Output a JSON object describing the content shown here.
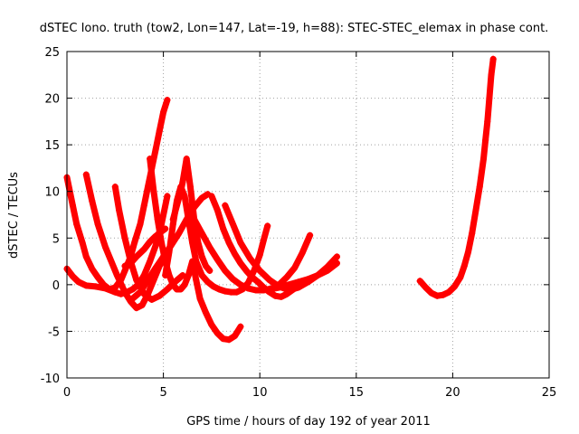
{
  "chart_data": {
    "type": "scatter",
    "title": "dSTEC Iono. truth (tow2, Lon=147, Lat=-19, h=88): STEC-STEC_elemax in phase cont.",
    "xlabel": "GPS time / hours of day 192 of year 2011",
    "ylabel": "dSTEC  / TECUs",
    "xlim": [
      0,
      25
    ],
    "ylim": [
      -10,
      25
    ],
    "xticks": [
      0,
      5,
      10,
      15,
      20,
      25
    ],
    "yticks": [
      -10,
      -5,
      0,
      5,
      10,
      15,
      20,
      25
    ],
    "grid": true,
    "marker": "+",
    "color": "#ff0000",
    "series": [
      {
        "x": [
          0.0,
          0.3,
          0.6,
          1.0,
          1.5,
          2.0,
          2.5
        ],
        "y": [
          1.7,
          0.9,
          0.3,
          -0.1,
          -0.2,
          -0.4,
          -0.8
        ]
      },
      {
        "x": [
          0.0,
          0.3,
          0.5,
          0.8,
          1.0,
          1.3,
          1.6,
          1.9,
          2.2,
          2.5,
          2.8,
          3.1,
          3.4,
          3.7,
          4.0,
          4.3,
          4.6,
          4.9,
          5.2
        ],
        "y": [
          11.5,
          8.5,
          6.5,
          4.5,
          3.0,
          1.7,
          0.8,
          0.0,
          -0.5,
          -0.8,
          -1.0,
          -0.8,
          -0.5,
          0.0,
          1.0,
          2.5,
          4.2,
          6.5,
          9.5
        ]
      },
      {
        "x": [
          1.0,
          1.3,
          1.6,
          2.0,
          2.3,
          2.6,
          3.0,
          3.3,
          3.6,
          3.9,
          4.2,
          4.5,
          4.8,
          5.0
        ],
        "y": [
          11.8,
          9.0,
          6.5,
          4.0,
          2.5,
          1.0,
          -0.8,
          -1.8,
          -2.5,
          -2.2,
          -1.0,
          0.5,
          2.0,
          3.0
        ]
      },
      {
        "x": [
          1.8,
          2.2,
          2.5,
          2.8,
          3.0,
          3.3,
          3.5,
          3.8,
          4.0,
          4.2,
          4.4,
          4.6,
          4.8,
          5.0,
          5.2
        ],
        "y": [
          -0.2,
          -0.5,
          -0.3,
          0.5,
          1.5,
          3.0,
          4.5,
          6.5,
          8.5,
          10.5,
          12.5,
          14.5,
          16.5,
          18.5,
          19.8
        ]
      },
      {
        "x": [
          2.5,
          2.7,
          3.0,
          3.3,
          3.6,
          4.0,
          4.4,
          4.8,
          5.2,
          5.6,
          6.0
        ],
        "y": [
          10.5,
          8.0,
          5.0,
          2.5,
          0.5,
          -1.0,
          -1.6,
          -1.2,
          -0.5,
          0.3,
          1.0
        ]
      },
      {
        "x": [
          3.0,
          3.3,
          3.6,
          4.0,
          4.3,
          4.6,
          4.9,
          5.1
        ],
        "y": [
          2.0,
          2.3,
          3.0,
          3.8,
          4.6,
          5.2,
          5.7,
          6.0
        ]
      },
      {
        "x": [
          3.4,
          3.8,
          4.2,
          4.6,
          5.0,
          5.4,
          5.8,
          6.2,
          6.6,
          7.0,
          7.3
        ],
        "y": [
          -1.5,
          -0.8,
          0.5,
          1.8,
          3.0,
          4.2,
          5.5,
          7.0,
          8.3,
          9.3,
          9.7
        ]
      },
      {
        "x": [
          4.3,
          4.5,
          4.7,
          4.9,
          5.1,
          5.3,
          5.5,
          5.7,
          5.9,
          6.1,
          6.3,
          6.5,
          6.7,
          6.9,
          7.2,
          7.5,
          7.8,
          8.1,
          8.4,
          8.7,
          9.0
        ],
        "y": [
          13.5,
          10.0,
          7.0,
          4.5,
          2.5,
          1.0,
          0.0,
          -0.5,
          -0.5,
          0.0,
          1.0,
          2.5,
          0.5,
          -1.5,
          -3.0,
          -4.3,
          -5.2,
          -5.8,
          -5.9,
          -5.5,
          -4.5
        ]
      },
      {
        "x": [
          5.1,
          5.3,
          5.5,
          5.7,
          5.9,
          6.1,
          6.3,
          6.5,
          6.7,
          7.0,
          7.3,
          7.6,
          7.9,
          8.2,
          8.5,
          8.8,
          9.1,
          9.4,
          9.7,
          10.0,
          10.2,
          10.4
        ],
        "y": [
          1.0,
          3.5,
          6.5,
          9.0,
          10.5,
          9.5,
          7.0,
          4.5,
          2.5,
          1.0,
          0.3,
          -0.2,
          -0.5,
          -0.7,
          -0.8,
          -0.8,
          -0.5,
          0.2,
          1.5,
          3.2,
          4.8,
          6.3
        ]
      },
      {
        "x": [
          5.5,
          5.7,
          5.9,
          6.0,
          6.2,
          6.4,
          6.6,
          6.8,
          7.0,
          7.2,
          7.4
        ],
        "y": [
          7.0,
          8.5,
          10.0,
          11.0,
          13.5,
          10.5,
          7.0,
          4.5,
          3.0,
          2.0,
          1.5
        ]
      },
      {
        "x": [
          6.2,
          6.6,
          7.0,
          7.4,
          7.8,
          8.2,
          8.6,
          9.0,
          9.4,
          9.8,
          10.2,
          10.6,
          11.0,
          11.4,
          11.8,
          12.2,
          12.6
        ],
        "y": [
          8.5,
          7.0,
          5.5,
          4.0,
          2.7,
          1.5,
          0.6,
          0.0,
          -0.4,
          -0.6,
          -0.6,
          -0.4,
          0.0,
          0.8,
          1.8,
          3.4,
          5.3
        ]
      },
      {
        "x": [
          7.5,
          7.8,
          8.1,
          8.4,
          8.7,
          9.0,
          9.3,
          9.6,
          9.9,
          10.2,
          10.5,
          10.8,
          11.1,
          11.4,
          11.8,
          12.2
        ],
        "y": [
          9.5,
          8.0,
          6.0,
          4.5,
          3.3,
          2.3,
          1.5,
          0.8,
          0.3,
          -0.3,
          -0.8,
          -1.2,
          -1.3,
          -1.0,
          -0.4,
          0.2
        ]
      },
      {
        "x": [
          8.2,
          8.6,
          9.0,
          9.5,
          10.0,
          10.5,
          11.0,
          11.5,
          12.0,
          12.5,
          13.0,
          13.5,
          14.0
        ],
        "y": [
          8.5,
          6.5,
          4.5,
          2.8,
          1.5,
          0.5,
          -0.2,
          -0.6,
          -0.3,
          0.3,
          1.0,
          1.9,
          3.0
        ]
      },
      {
        "x": [
          10.5,
          11.0,
          11.5,
          12.0,
          12.5,
          13.0,
          13.5,
          14.0
        ],
        "y": [
          -0.5,
          -0.3,
          0.0,
          0.3,
          0.6,
          1.0,
          1.5,
          2.3
        ]
      },
      {
        "x": [
          18.3,
          18.6,
          18.9,
          19.2,
          19.5,
          19.8,
          20.1,
          20.4,
          20.6,
          20.8,
          21.0,
          21.2,
          21.4,
          21.6,
          21.7,
          21.8,
          21.9,
          22.0,
          22.1
        ],
        "y": [
          0.4,
          -0.3,
          -0.9,
          -1.2,
          -1.1,
          -0.8,
          -0.2,
          0.8,
          2.0,
          3.5,
          5.5,
          8.0,
          10.5,
          13.5,
          15.5,
          17.5,
          20.0,
          22.5,
          24.2
        ]
      }
    ]
  }
}
